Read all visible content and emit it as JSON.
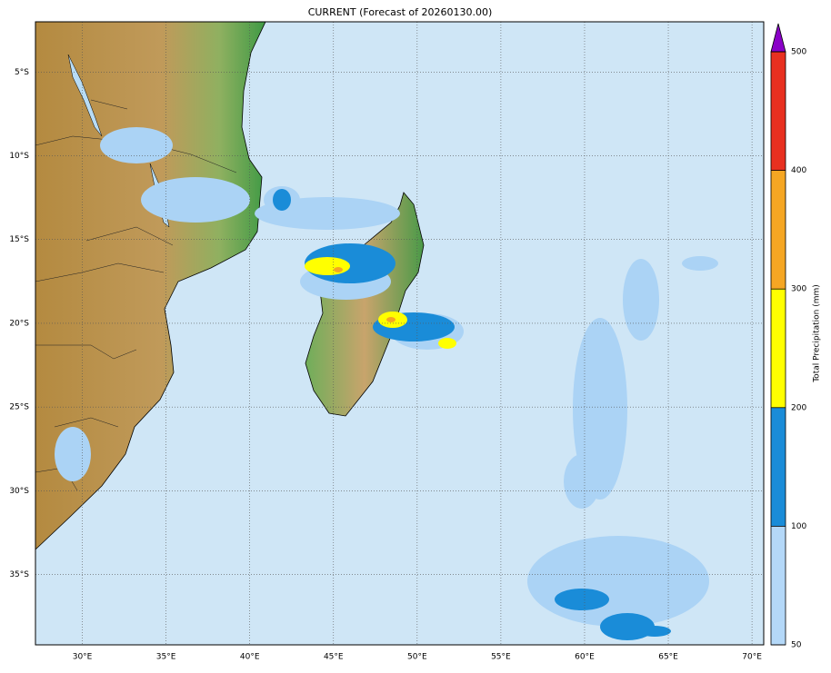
{
  "title": "CURRENT (Forecast of 20260130.00)",
  "map": {
    "xlim": [
      27.2,
      70.7
    ],
    "ylim": [
      -2,
      -39.2
    ],
    "xticks": [
      {
        "value": 30,
        "label": "30°E"
      },
      {
        "value": 35,
        "label": "35°E"
      },
      {
        "value": 40,
        "label": "40°E"
      },
      {
        "value": 45,
        "label": "45°E"
      },
      {
        "value": 50,
        "label": "50°E"
      },
      {
        "value": 55,
        "label": "55°E"
      },
      {
        "value": 60,
        "label": "60°E"
      },
      {
        "value": 65,
        "label": "65°E"
      },
      {
        "value": 70,
        "label": "70°E"
      }
    ],
    "yticks": [
      {
        "value": -5,
        "label": "5°S"
      },
      {
        "value": -10,
        "label": "10°S"
      },
      {
        "value": -15,
        "label": "15°S"
      },
      {
        "value": -20,
        "label": "20°S"
      },
      {
        "value": -25,
        "label": "25°S"
      },
      {
        "value": -30,
        "label": "30°S"
      },
      {
        "value": -35,
        "label": "35°S"
      }
    ],
    "grid": true
  },
  "colorbar": {
    "label": "Total Precipitation (mm)",
    "levels": [
      50,
      100,
      200,
      300,
      400,
      500
    ],
    "colors": [
      "#b4d8f8",
      "#1a8cd8",
      "#ffff00",
      "#f5a623",
      "#e83020"
    ],
    "extend_color": "#8a00c8"
  }
}
